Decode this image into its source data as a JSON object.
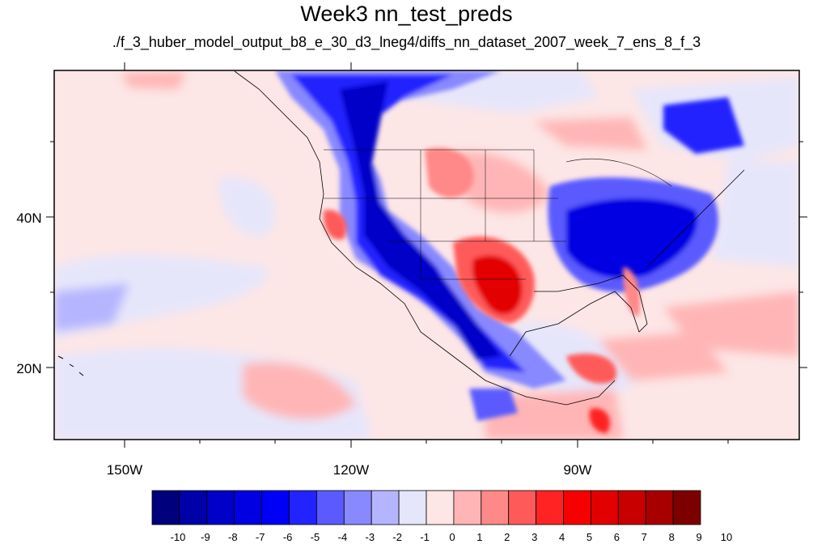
{
  "title": "Week3 nn_test_preds",
  "subtitle": "./f_3_huber_model_output_b8_e_30_d3_lneg4/diffs_nn_dataset_2007_week_7_ens_8_f_3",
  "axes": {
    "lon_labels": [
      "150W",
      "120W",
      "90W"
    ],
    "lat_labels": [
      "40N",
      "20N"
    ]
  },
  "colorbar": {
    "labels": [
      "-10",
      "-9",
      "-8",
      "-7",
      "-6",
      "-5",
      "-4",
      "-3",
      "-2",
      "-1",
      "0",
      "1",
      "2",
      "3",
      "4",
      "5",
      "6",
      "7",
      "8",
      "9",
      "10"
    ],
    "colors": [
      "#00007c",
      "#0000a8",
      "#0000c8",
      "#0000e2",
      "#0000f6",
      "#2323ff",
      "#5a5aff",
      "#8888ff",
      "#b5b5ff",
      "#e6e6fb",
      "#fde6e6",
      "#ffb5b5",
      "#ff8888",
      "#ff5a5a",
      "#ff2323",
      "#f60000",
      "#e20000",
      "#c80000",
      "#a80000",
      "#7c0000"
    ]
  },
  "colors": {
    "background_field": "#fde6e6",
    "negative": "#0000f6",
    "positive": "#f60000"
  }
}
